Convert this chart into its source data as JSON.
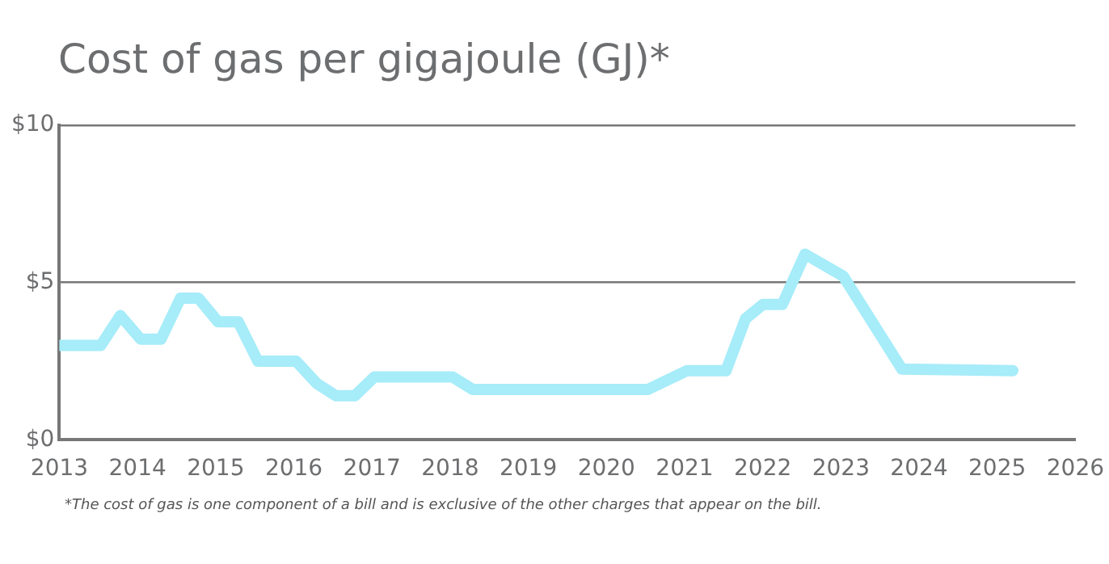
{
  "chart_data": {
    "type": "line",
    "title": "Cost of gas per gigajoule (GJ)*",
    "x": [
      2013.0,
      2013.53,
      2013.78,
      2014.04,
      2014.3,
      2014.55,
      2014.78,
      2015.03,
      2015.29,
      2015.54,
      2016.03,
      2016.29,
      2016.54,
      2016.78,
      2017.03,
      2018.03,
      2018.29,
      2020.53,
      2021.03,
      2021.53,
      2021.78,
      2022.0,
      2022.25,
      2022.54,
      2023.03,
      2023.78,
      2025.2
    ],
    "series": [
      {
        "color": "#a6ecf9",
        "values": [
          3.0,
          3.0,
          3.95,
          3.2,
          3.2,
          4.5,
          4.5,
          3.75,
          3.75,
          2.5,
          2.5,
          1.8,
          1.4,
          1.4,
          2.0,
          2.0,
          1.6,
          1.6,
          2.2,
          2.2,
          3.85,
          4.3,
          4.3,
          5.9,
          5.2,
          2.25,
          2.2
        ]
      }
    ],
    "xlim": [
      2013,
      2026
    ],
    "xticks": [
      2013,
      2014,
      2015,
      2016,
      2017,
      2018,
      2019,
      2020,
      2021,
      2022,
      2023,
      2024,
      2025,
      2026
    ],
    "ylim": [
      0,
      10
    ],
    "yticks": [
      {
        "value": 0,
        "label": "$0"
      },
      {
        "value": 5,
        "label": "$5"
      },
      {
        "value": 10,
        "label": "$10"
      }
    ],
    "grid": "y",
    "legend": false,
    "marker": "none",
    "line_style": "solid",
    "annotations": [
      "*The cost of gas is one component of a bill and is exclusive of the other charges that appear on the bill."
    ]
  }
}
